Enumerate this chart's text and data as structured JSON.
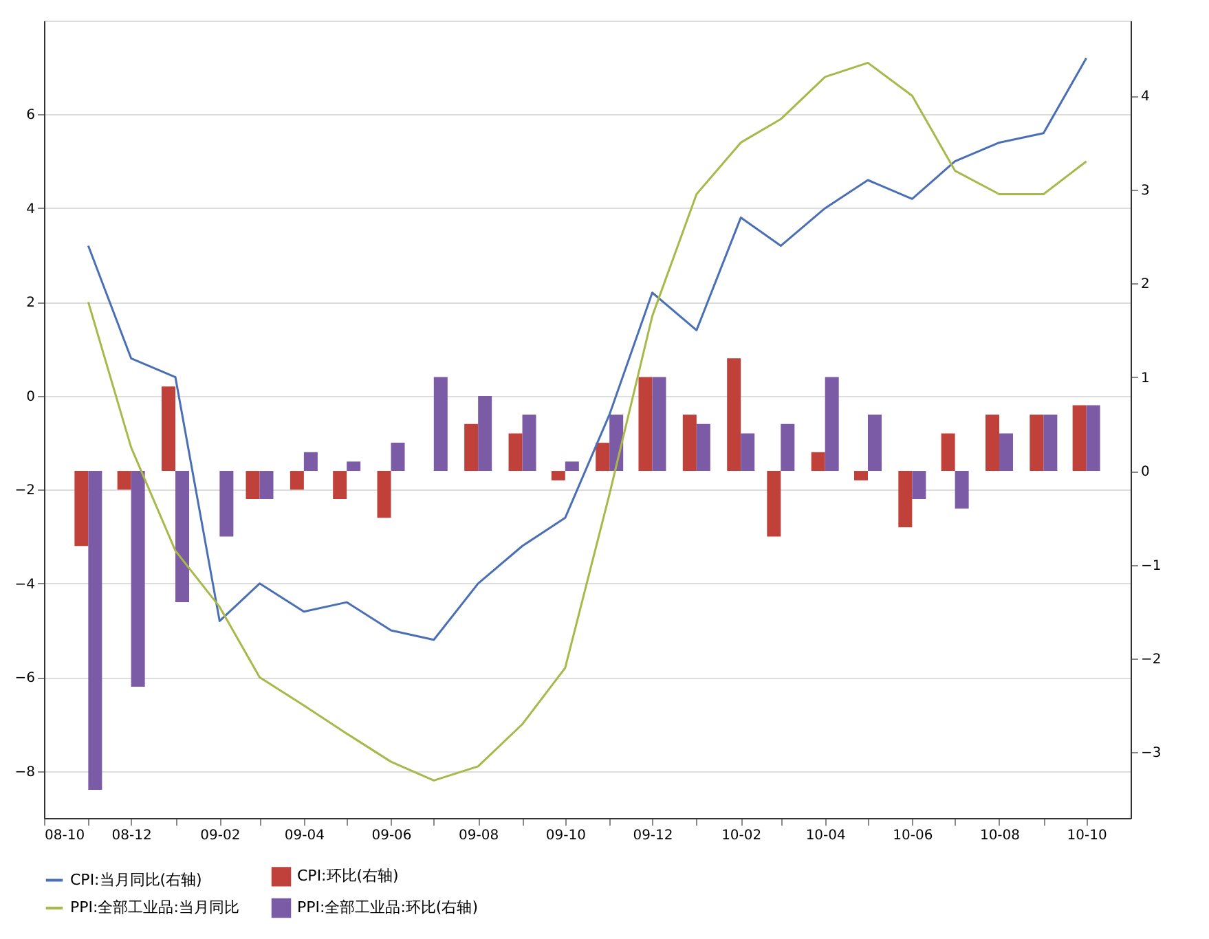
{
  "chart_data": {
    "type": "bar",
    "x": [
      "2008-11",
      "2008-12",
      "2009-01",
      "2009-02",
      "2009-03",
      "2009-04",
      "2009-05",
      "2009-06",
      "2009-07",
      "2009-08",
      "2009-09",
      "2009-10",
      "2009-11",
      "2009-12",
      "2010-01",
      "2010-02",
      "2010-03",
      "2010-04",
      "2010-05",
      "2010-06",
      "2010-07",
      "2010-08",
      "2010-09",
      "2010-10"
    ],
    "series": [
      {
        "name": "CPI:当月同比(右轴)",
        "type": "line",
        "axis": "y2",
        "color": "#4a6fb5",
        "values": [
          2.4,
          1.2,
          1.0,
          -1.6,
          -1.2,
          -1.5,
          -1.4,
          -1.7,
          -1.8,
          -1.2,
          -0.8,
          -0.5,
          0.6,
          1.9,
          1.5,
          2.7,
          2.4,
          2.8,
          3.1,
          2.9,
          3.3,
          3.5,
          3.6,
          4.4
        ]
      },
      {
        "name": "CPI:环比(右轴)",
        "axis": "y2",
        "color": "#c0403a",
        "values": [
          -0.8,
          -0.2,
          0.9,
          0.0,
          -0.3,
          -0.2,
          -0.3,
          -0.5,
          0.0,
          0.5,
          0.4,
          -0.1,
          0.3,
          1.0,
          0.6,
          1.2,
          -0.7,
          0.2,
          -0.1,
          -0.6,
          0.4,
          0.6,
          0.6,
          0.7
        ]
      },
      {
        "name": "PPI:全部工业品:当月同比",
        "type": "line",
        "color": "#a8b84a",
        "values": [
          2.0,
          -1.1,
          -3.3,
          -4.5,
          -6.0,
          -6.6,
          -7.2,
          -7.8,
          -8.2,
          -7.9,
          -7.0,
          -5.8,
          -2.1,
          1.7,
          4.3,
          5.4,
          5.9,
          6.8,
          7.1,
          6.4,
          4.8,
          4.3,
          4.3,
          5.0
        ]
      },
      {
        "name": "PPI:全部工业品:环比(右轴)",
        "axis": "y2",
        "color": "#7b5aa6",
        "values": [
          -3.4,
          -2.3,
          -1.4,
          -0.7,
          -0.3,
          0.2,
          0.1,
          0.3,
          1.0,
          0.8,
          0.6,
          0.1,
          0.6,
          1.0,
          0.5,
          0.4,
          0.5,
          1.0,
          0.6,
          -0.3,
          -0.4,
          0.4,
          0.6,
          0.7
        ]
      }
    ],
    "xlim": [
      "2008-10",
      "2010-11"
    ],
    "xticks": [
      {
        "value": "2008-10",
        "label": "08-10"
      },
      {
        "value": "2008-11",
        "label": null
      },
      {
        "value": "2008-12",
        "label": "08-12"
      },
      {
        "value": "2009-01",
        "label": null
      },
      {
        "value": "2009-02",
        "label": "09-02"
      },
      {
        "value": "2009-03",
        "label": null
      },
      {
        "value": "2009-04",
        "label": "09-04"
      },
      {
        "value": "2009-05",
        "label": null
      },
      {
        "value": "2009-06",
        "label": "09-06"
      },
      {
        "value": "2009-07",
        "label": null
      },
      {
        "value": "2009-08",
        "label": "09-08"
      },
      {
        "value": "2009-09",
        "label": null
      },
      {
        "value": "2009-10",
        "label": "09-10"
      },
      {
        "value": "2009-11",
        "label": null
      },
      {
        "value": "2009-12",
        "label": "09-12"
      },
      {
        "value": "2010-01",
        "label": null
      },
      {
        "value": "2010-02",
        "label": "10-02"
      },
      {
        "value": "2010-03",
        "label": null
      },
      {
        "value": "2010-04",
        "label": "10-04"
      },
      {
        "value": "2010-05",
        "label": null
      },
      {
        "value": "2010-06",
        "label": "10-06"
      },
      {
        "value": "2010-07",
        "label": null
      },
      {
        "value": "2010-08",
        "label": "10-08"
      },
      {
        "value": "2010-09",
        "label": null
      },
      {
        "value": "2010-10",
        "label": "10-10"
      }
    ],
    "ylim": [
      -9,
      8
    ],
    "yticks": [
      -8,
      -6,
      -4,
      -2,
      0,
      2,
      4,
      6
    ],
    "y2lim": [
      -3.7,
      4.8
    ],
    "y2ticks": [
      -3,
      -2,
      -1,
      0,
      1,
      2,
      3,
      4
    ],
    "grid": "y",
    "legend": "bottom"
  }
}
